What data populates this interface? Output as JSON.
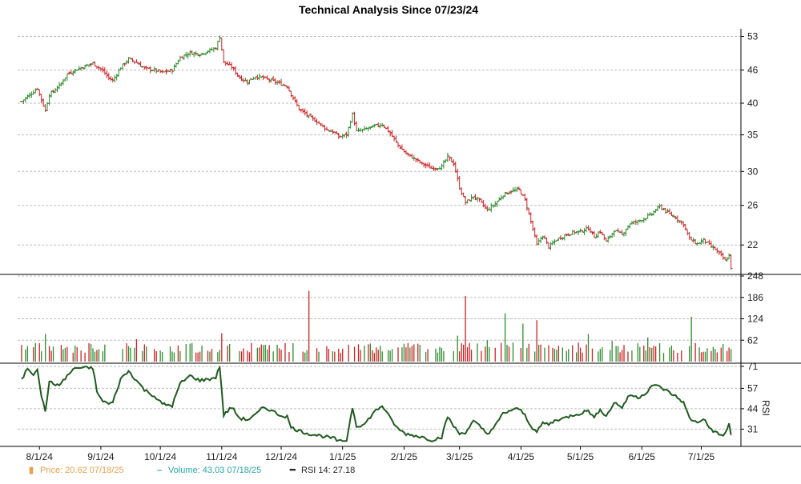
{
  "chart_data": {
    "type": "stock-chart",
    "title": "Technical Analysis Since 07/23/24",
    "colors": {
      "up": "#2e8b2e",
      "down": "#cc2222",
      "rsi": "#1f5b1f",
      "price_legend": "#e8a04a",
      "volume_legend": "#28a6a6"
    },
    "x_ticks": [
      {
        "label": "8/1/24",
        "t": 9
      },
      {
        "label": "9/1/24",
        "t": 40
      },
      {
        "label": "10/1/24",
        "t": 70
      },
      {
        "label": "11/1/24",
        "t": 101
      },
      {
        "label": "12/1/24",
        "t": 131
      },
      {
        "label": "1/1/25",
        "t": 162
      },
      {
        "label": "2/1/25",
        "t": 193
      },
      {
        "label": "3/1/25",
        "t": 221
      },
      {
        "label": "4/1/25",
        "t": 252
      },
      {
        "label": "5/1/25",
        "t": 282
      },
      {
        "label": "6/1/25",
        "t": 313
      },
      {
        "label": "7/1/25",
        "t": 343
      }
    ],
    "t_range": [
      -2,
      363
    ],
    "price_panel": {
      "yticks": [
        22,
        26,
        30,
        35,
        40,
        46,
        53
      ],
      "ylim": [
        19.5,
        54
      ],
      "log_scale": true,
      "close_anchors": [
        [
          0,
          40.3
        ],
        [
          3,
          41.2
        ],
        [
          6,
          42.0
        ],
        [
          8,
          42.6
        ],
        [
          10,
          40.5
        ],
        [
          12,
          38.8
        ],
        [
          14,
          41.5
        ],
        [
          16,
          42.0
        ],
        [
          20,
          43.5
        ],
        [
          23,
          45.2
        ],
        [
          27,
          46.0
        ],
        [
          32,
          46.8
        ],
        [
          36,
          47.3
        ],
        [
          40,
          46.2
        ],
        [
          44,
          44.5
        ],
        [
          46,
          44.0
        ],
        [
          50,
          46.5
        ],
        [
          54,
          48.2
        ],
        [
          58,
          47.5
        ],
        [
          62,
          46.3
        ],
        [
          67,
          46.0
        ],
        [
          71,
          45.5
        ],
        [
          76,
          46.0
        ],
        [
          80,
          48.5
        ],
        [
          85,
          49.5
        ],
        [
          90,
          49.2
        ],
        [
          95,
          50.0
        ],
        [
          98,
          50.5
        ],
        [
          100,
          53.0
        ],
        [
          102,
          47.5
        ],
        [
          106,
          46.6
        ],
        [
          110,
          44.5
        ],
        [
          114,
          43.8
        ],
        [
          118,
          44.8
        ],
        [
          122,
          44.5
        ],
        [
          126,
          44.0
        ],
        [
          130,
          43.5
        ],
        [
          134,
          43.0
        ],
        [
          136,
          41.5
        ],
        [
          140,
          39.0
        ],
        [
          145,
          37.8
        ],
        [
          150,
          36.8
        ],
        [
          154,
          35.8
        ],
        [
          158,
          35.3
        ],
        [
          160,
          34.7
        ],
        [
          164,
          35.0
        ],
        [
          167,
          38.2
        ],
        [
          169,
          35.5
        ],
        [
          173,
          35.8
        ],
        [
          178,
          36.3
        ],
        [
          182,
          36.6
        ],
        [
          186,
          35.2
        ],
        [
          190,
          33.5
        ],
        [
          194,
          32.3
        ],
        [
          198,
          31.7
        ],
        [
          202,
          31.0
        ],
        [
          207,
          30.4
        ],
        [
          212,
          30.6
        ],
        [
          215,
          31.9
        ],
        [
          218,
          31.0
        ],
        [
          221,
          28.0
        ],
        [
          224,
          26.3
        ],
        [
          228,
          27.0
        ],
        [
          231,
          26.5
        ],
        [
          235,
          25.5
        ],
        [
          239,
          26.2
        ],
        [
          243,
          27.2
        ],
        [
          247,
          27.6
        ],
        [
          251,
          27.8
        ],
        [
          254,
          26.6
        ],
        [
          257,
          24.3
        ],
        [
          260,
          22.0
        ],
        [
          263,
          22.9
        ],
        [
          266,
          21.8
        ],
        [
          270,
          22.5
        ],
        [
          274,
          22.9
        ],
        [
          278,
          23.2
        ],
        [
          282,
          23.3
        ],
        [
          286,
          23.6
        ],
        [
          289,
          22.8
        ],
        [
          292,
          23.3
        ],
        [
          295,
          22.3
        ],
        [
          299,
          23.4
        ],
        [
          303,
          23.0
        ],
        [
          307,
          24.1
        ],
        [
          311,
          24.3
        ],
        [
          315,
          24.7
        ],
        [
          318,
          25.1
        ],
        [
          322,
          25.9
        ],
        [
          326,
          25.2
        ],
        [
          330,
          24.7
        ],
        [
          334,
          24.0
        ],
        [
          337,
          22.6
        ],
        [
          341,
          22.1
        ],
        [
          344,
          22.5
        ],
        [
          347,
          22.0
        ],
        [
          350,
          21.6
        ],
        [
          353,
          21.0
        ],
        [
          355,
          20.6
        ],
        [
          357,
          21.0
        ],
        [
          358,
          20.0
        ]
      ]
    },
    "volume_panel": {
      "yticks": [
        62,
        124,
        186,
        248
      ],
      "ylim": [
        0,
        248
      ],
      "spikes": [
        [
          3,
          45
        ],
        [
          12,
          80
        ],
        [
          58,
          65
        ],
        [
          101,
          82
        ],
        [
          145,
          205
        ],
        [
          175,
          50
        ],
        [
          200,
          52
        ],
        [
          220,
          75
        ],
        [
          224,
          190
        ],
        [
          235,
          62
        ],
        [
          244,
          140
        ],
        [
          253,
          110
        ],
        [
          260,
          120
        ],
        [
          286,
          80
        ],
        [
          298,
          60
        ],
        [
          316,
          70
        ],
        [
          338,
          130
        ]
      ]
    },
    "rsi_panel": {
      "ylabel": "RSI",
      "yticks": [
        31,
        44,
        57,
        71
      ],
      "ylim": [
        20,
        72
      ],
      "values": [
        [
          0,
          62
        ],
        [
          3,
          70
        ],
        [
          6,
          66
        ],
        [
          8,
          70
        ],
        [
          10,
          52
        ],
        [
          12,
          42
        ],
        [
          14,
          62
        ],
        [
          16,
          59
        ],
        [
          20,
          60
        ],
        [
          23,
          65
        ],
        [
          27,
          70
        ],
        [
          32,
          70
        ],
        [
          36,
          70
        ],
        [
          38,
          55
        ],
        [
          40,
          50
        ],
        [
          44,
          47
        ],
        [
          46,
          48
        ],
        [
          50,
          63
        ],
        [
          54,
          68
        ],
        [
          58,
          62
        ],
        [
          62,
          56
        ],
        [
          67,
          52
        ],
        [
          71,
          47
        ],
        [
          76,
          46
        ],
        [
          80,
          60
        ],
        [
          85,
          65
        ],
        [
          90,
          62
        ],
        [
          95,
          63
        ],
        [
          98,
          64
        ],
        [
          100,
          71
        ],
        [
          102,
          40
        ],
        [
          106,
          45
        ],
        [
          110,
          38
        ],
        [
          114,
          37
        ],
        [
          118,
          40
        ],
        [
          122,
          45
        ],
        [
          126,
          43
        ],
        [
          130,
          40
        ],
        [
          134,
          39
        ],
        [
          136,
          32
        ],
        [
          140,
          30
        ],
        [
          145,
          28
        ],
        [
          150,
          27
        ],
        [
          154,
          26
        ],
        [
          158,
          25
        ],
        [
          160,
          23
        ],
        [
          164,
          24
        ],
        [
          167,
          45
        ],
        [
          169,
          33
        ],
        [
          173,
          34
        ],
        [
          178,
          42
        ],
        [
          182,
          46
        ],
        [
          186,
          38
        ],
        [
          190,
          31
        ],
        [
          194,
          28
        ],
        [
          198,
          27
        ],
        [
          202,
          26
        ],
        [
          207,
          24
        ],
        [
          212,
          26
        ],
        [
          215,
          39
        ],
        [
          218,
          33
        ],
        [
          221,
          28
        ],
        [
          224,
          29
        ],
        [
          228,
          36
        ],
        [
          231,
          33
        ],
        [
          235,
          28
        ],
        [
          239,
          33
        ],
        [
          243,
          41
        ],
        [
          247,
          43
        ],
        [
          251,
          44
        ],
        [
          254,
          40
        ],
        [
          257,
          33
        ],
        [
          260,
          29
        ],
        [
          263,
          35
        ],
        [
          266,
          34
        ],
        [
          270,
          37
        ],
        [
          274,
          38
        ],
        [
          278,
          40
        ],
        [
          282,
          41
        ],
        [
          286,
          43
        ],
        [
          289,
          38
        ],
        [
          292,
          44
        ],
        [
          295,
          39
        ],
        [
          299,
          48
        ],
        [
          303,
          45
        ],
        [
          307,
          53
        ],
        [
          311,
          51
        ],
        [
          315,
          54
        ],
        [
          318,
          59
        ],
        [
          322,
          58
        ],
        [
          326,
          55
        ],
        [
          330,
          52
        ],
        [
          334,
          48
        ],
        [
          337,
          38
        ],
        [
          341,
          35
        ],
        [
          344,
          38
        ],
        [
          347,
          32
        ],
        [
          350,
          29
        ],
        [
          353,
          27
        ],
        [
          355,
          28
        ],
        [
          357,
          34
        ],
        [
          358,
          27
        ]
      ]
    },
    "legend": [
      {
        "marker": "▮",
        "label": "Price: 20.62  07/18/25",
        "color": "#e8a04a"
      },
      {
        "marker": "–",
        "label": "Volume: 43.03  07/18/25",
        "color": "#28a6a6"
      },
      {
        "marker": "━",
        "label": "RSI 14: 27.18",
        "color": "#222222"
      }
    ]
  }
}
